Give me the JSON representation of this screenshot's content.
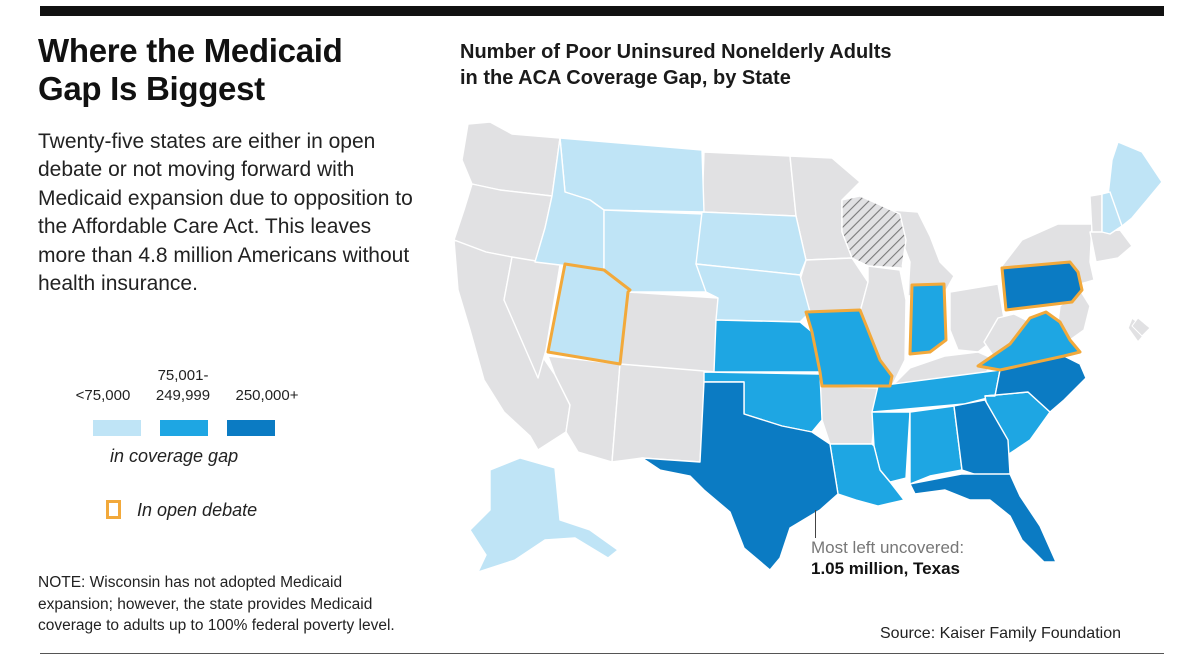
{
  "headline": [
    "Where the Medicaid",
    "Gap Is Biggest"
  ],
  "deck": "Twenty-five states are either in open debate or not moving forward with Medicaid expansion due to opposition to the Affordable Care Act. This leaves more than 4.8 million Americans without health insurance.",
  "map_title": [
    "Number of Poor Uninsured Nonelderly Adults",
    "in the ACA Coverage Gap, by State"
  ],
  "legend": {
    "bins": [
      {
        "label_top": "",
        "label": "<75,000",
        "color": "#bfe4f6"
      },
      {
        "label_top": "75,001-",
        "label": "249,999",
        "color": "#1ea6e3"
      },
      {
        "label_top": "",
        "label": "250,000+",
        "color": "#0b7bc3"
      }
    ],
    "caption": "in coverage gap",
    "debate_label": "In open debate",
    "debate_color": "#f2a93b",
    "not_in_gap_color": "#e1e1e3"
  },
  "states": {
    "light": [
      "Montana",
      "Idaho",
      "Wyoming",
      "South Dakota",
      "Nebraska",
      "Utah",
      "Alaska",
      "Maine",
      "New Hampshire"
    ],
    "medium": [
      "Kansas",
      "Oklahoma",
      "Missouri",
      "Indiana",
      "Virginia",
      "Tennessee",
      "Louisiana",
      "Mississippi",
      "Alabama",
      "South Carolina"
    ],
    "dark": [
      "Texas",
      "Georgia",
      "Florida",
      "North Carolina",
      "Pennsylvania"
    ],
    "open_debate": [
      "Utah",
      "Missouri",
      "Indiana",
      "Virginia",
      "Pennsylvania"
    ],
    "hatched": [
      "Wisconsin"
    ]
  },
  "callout": {
    "line1": "Most left uncovered:",
    "line2": "1.05 million, Texas"
  },
  "note": [
    "NOTE: Wisconsin has not adopted Medicaid",
    "expansion; however, the state provides Medicaid",
    "coverage to adults up to 100% federal poverty level."
  ],
  "source": "Source: Kaiser Family Foundation"
}
